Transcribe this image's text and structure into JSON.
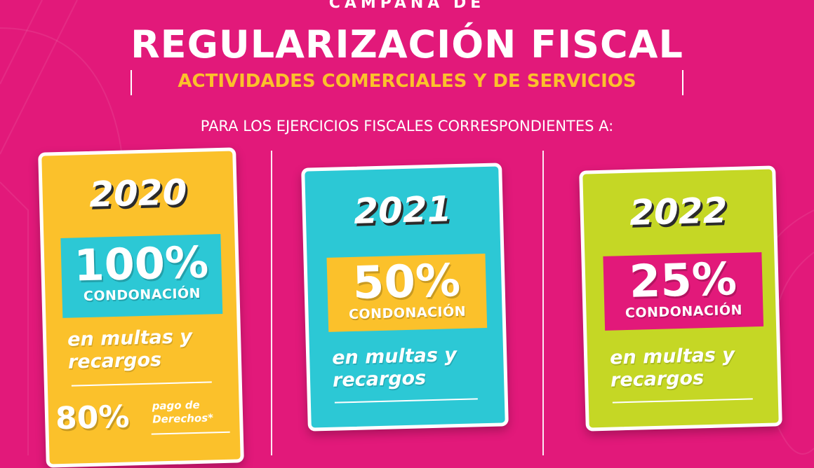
{
  "header": {
    "pretitle": "CAMPAÑA DE",
    "title": "REGULARIZACIÓN FISCAL",
    "subtitle": "ACTIVIDADES COMERCIALES Y DE SERVICIOS",
    "periods_text": "PARA LOS EJERCICIOS FISCALES CORRESPONDIENTES A:"
  },
  "colors": {
    "background": "#e2197a",
    "yellow": "#fbc12b",
    "cyan": "#2cc8d5",
    "lime": "#c5d725",
    "magenta": "#e2197a"
  },
  "cards": [
    {
      "year": "2020",
      "percent": "100%",
      "condonation_label": "CONDONACIÓN",
      "scope_line1": "en multas y",
      "scope_line2": "recargos",
      "extra_percent": "80%",
      "extra_label_line1": "pago de",
      "extra_label_line2": "Derechos*"
    },
    {
      "year": "2021",
      "percent": "50%",
      "condonation_label": "CONDONACIÓN",
      "scope_line1": "en multas y",
      "scope_line2": "recargos"
    },
    {
      "year": "2022",
      "percent": "25%",
      "condonation_label": "CONDONACIÓN",
      "scope_line1": "en multas y",
      "scope_line2": "recargos"
    }
  ]
}
